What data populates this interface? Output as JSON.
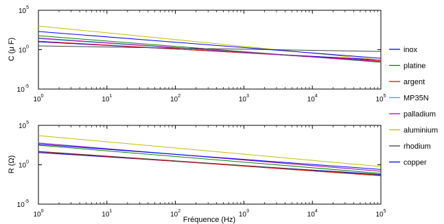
{
  "figure": {
    "xlabel": "Fréquence (Hz)",
    "legend": {
      "placement": "right",
      "entries": [
        {
          "name": "inox",
          "color": "#0000ff"
        },
        {
          "name": "platine",
          "color": "#008000"
        },
        {
          "name": "argent",
          "color": "#ff0000"
        },
        {
          "name": "MP35N",
          "color": "#00bfbf"
        },
        {
          "name": "palladium",
          "color": "#bf00bf"
        },
        {
          "name": "aluminium",
          "color": "#bfbf00"
        },
        {
          "name": "rhodium",
          "color": "#404040"
        },
        {
          "name": "copper",
          "color": "#0000ff"
        }
      ]
    }
  },
  "chart_data": [
    {
      "type": "line",
      "scale": "log-log",
      "ylabel": "C (μ F)",
      "xlim": [
        1,
        100000
      ],
      "ylim": [
        1e-05,
        100000
      ],
      "x_ticks": [
        "1",
        "10",
        "100",
        "1000",
        "10000",
        "100000"
      ],
      "y_ticks": [
        "0.00001",
        "1",
        "100000"
      ],
      "grid": false,
      "series": [
        {
          "name": "inox",
          "color": "#0000ff",
          "x": [
            1,
            100000
          ],
          "y": [
            10,
            0.05
          ]
        },
        {
          "name": "platine",
          "color": "#008000",
          "x": [
            1,
            100000
          ],
          "y": [
            60,
            0.025
          ]
        },
        {
          "name": "argent",
          "color": "#ff0000",
          "x": [
            1,
            100000
          ],
          "y": [
            12,
            0.04
          ]
        },
        {
          "name": "MP35N",
          "color": "#00bfbf",
          "x": [
            1,
            100000
          ],
          "y": [
            25,
            0.03
          ]
        },
        {
          "name": "palladium",
          "color": "#bf00bf",
          "x": [
            1,
            100000
          ],
          "y": [
            30,
            0.03
          ]
        },
        {
          "name": "aluminium",
          "color": "#bfbf00",
          "x": [
            1,
            100000
          ],
          "y": [
            1000,
            0.05
          ]
        },
        {
          "name": "rhodium",
          "color": "#404040",
          "x": [
            1,
            100000
          ],
          "y": [
            3,
            0.6
          ]
        },
        {
          "name": "copper",
          "color": "#0000ff",
          "x": [
            1,
            100000
          ],
          "y": [
            200,
            0.08
          ]
        }
      ]
    },
    {
      "type": "line",
      "scale": "log-log",
      "ylabel": "R (Ω)",
      "xlim": [
        1,
        100000
      ],
      "ylim": [
        1e-05,
        100000
      ],
      "x_ticks": [
        "1",
        "10",
        "100",
        "1000",
        "10000",
        "100000"
      ],
      "y_ticks": [
        "0.00001",
        "1",
        "100000"
      ],
      "grid": false,
      "series": [
        {
          "name": "inox",
          "color": "#0000ff",
          "x": [
            1,
            100000
          ],
          "y": [
            35,
            0.06
          ]
        },
        {
          "name": "platine",
          "color": "#008000",
          "x": [
            1,
            100000
          ],
          "y": [
            300,
            0.08
          ]
        },
        {
          "name": "argent",
          "color": "#ff0000",
          "x": [
            1,
            100000
          ],
          "y": [
            45,
            0.04
          ]
        },
        {
          "name": "MP35N",
          "color": "#00bfbf",
          "x": [
            1,
            100000
          ],
          "y": [
            600,
            0.15
          ]
        },
        {
          "name": "palladium",
          "color": "#bf00bf",
          "x": [
            1,
            100000
          ],
          "y": [
            550,
            0.15
          ]
        },
        {
          "name": "aluminium",
          "color": "#bfbf00",
          "x": [
            1,
            100000
          ],
          "y": [
            5000,
            0.6
          ]
        },
        {
          "name": "rhodium",
          "color": "#404040",
          "x": [
            1,
            100000
          ],
          "y": [
            50,
            0.05
          ]
        },
        {
          "name": "copper",
          "color": "#0000ff",
          "x": [
            1,
            100000
          ],
          "y": [
            400,
            0.25
          ]
        }
      ]
    }
  ]
}
